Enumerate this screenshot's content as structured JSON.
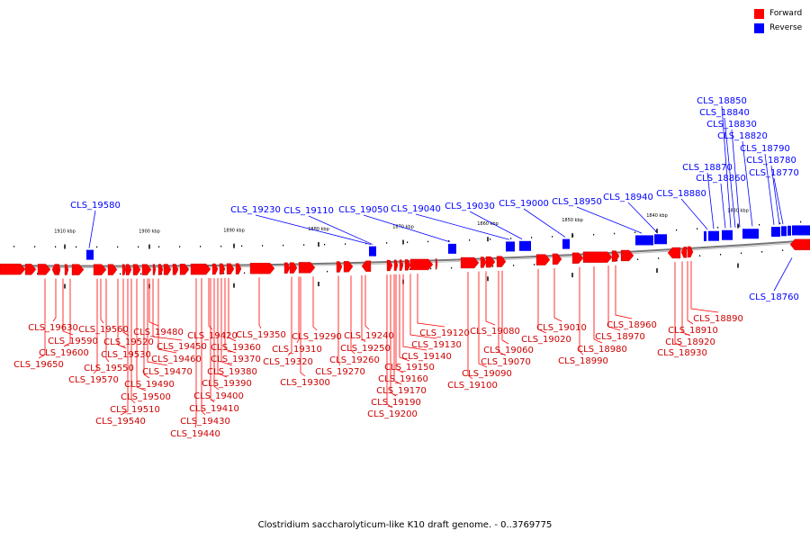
{
  "colors": {
    "forward": "#ff0000",
    "reverse": "#0000ff",
    "line": "#555555",
    "tick": "#000000"
  },
  "legend": {
    "forward": "Forward",
    "reverse": "Reverse"
  },
  "caption": "Clostridium saccharolyticum-like K10 draft genome. - 0..3769775",
  "scale_labels": [
    "1910 kbp",
    "1900 kbp",
    "1890 kbp",
    "1880 kbp",
    "1870 kbp",
    "1860 kbp",
    "1850 kbp",
    "1840 kbp",
    "1830 kbp"
  ],
  "reverse_genes": [
    "CLS_19580",
    "CLS_19230",
    "CLS_19110",
    "CLS_19050",
    "CLS_19040",
    "CLS_19030",
    "CLS_19000",
    "CLS_18950",
    "CLS_18940",
    "CLS_18880",
    "CLS_18870",
    "CLS_18860",
    "CLS_18850",
    "CLS_18840",
    "CLS_18830",
    "CLS_18820",
    "CLS_18790",
    "CLS_18780",
    "CLS_18770",
    "CLS_18760"
  ],
  "forward_genes": [
    "CLS_19630",
    "CLS_19590",
    "CLS_19600",
    "CLS_19650",
    "CLS_19560",
    "CLS_19520",
    "CLS_19550",
    "CLS_19530",
    "CLS_19570",
    "CLS_19480",
    "CLS_19460",
    "CLS_19450",
    "CLS_19470",
    "CLS_19490",
    "CLS_19500",
    "CLS_19510",
    "CLS_19540",
    "CLS_19420",
    "CLS_19350",
    "CLS_19360",
    "CLS_19370",
    "CLS_19380",
    "CLS_19390",
    "CLS_19400",
    "CLS_19410",
    "CLS_19430",
    "CLS_19440",
    "CLS_19290",
    "CLS_19310",
    "CLS_19320",
    "CLS_19300",
    "CLS_19240",
    "CLS_19250",
    "CLS_19260",
    "CLS_19270",
    "CLS_19120",
    "CLS_19130",
    "CLS_19140",
    "CLS_19150",
    "CLS_19160",
    "CLS_19170",
    "CLS_19190",
    "CLS_19200",
    "CLS_19080",
    "CLS_19060",
    "CLS_19070",
    "CLS_19090",
    "CLS_19100",
    "CLS_19010",
    "CLS_19020",
    "CLS_18960",
    "CLS_18970",
    "CLS_18980",
    "CLS_18990",
    "CLS_18890",
    "CLS_18910",
    "CLS_18920",
    "CLS_18930"
  ]
}
